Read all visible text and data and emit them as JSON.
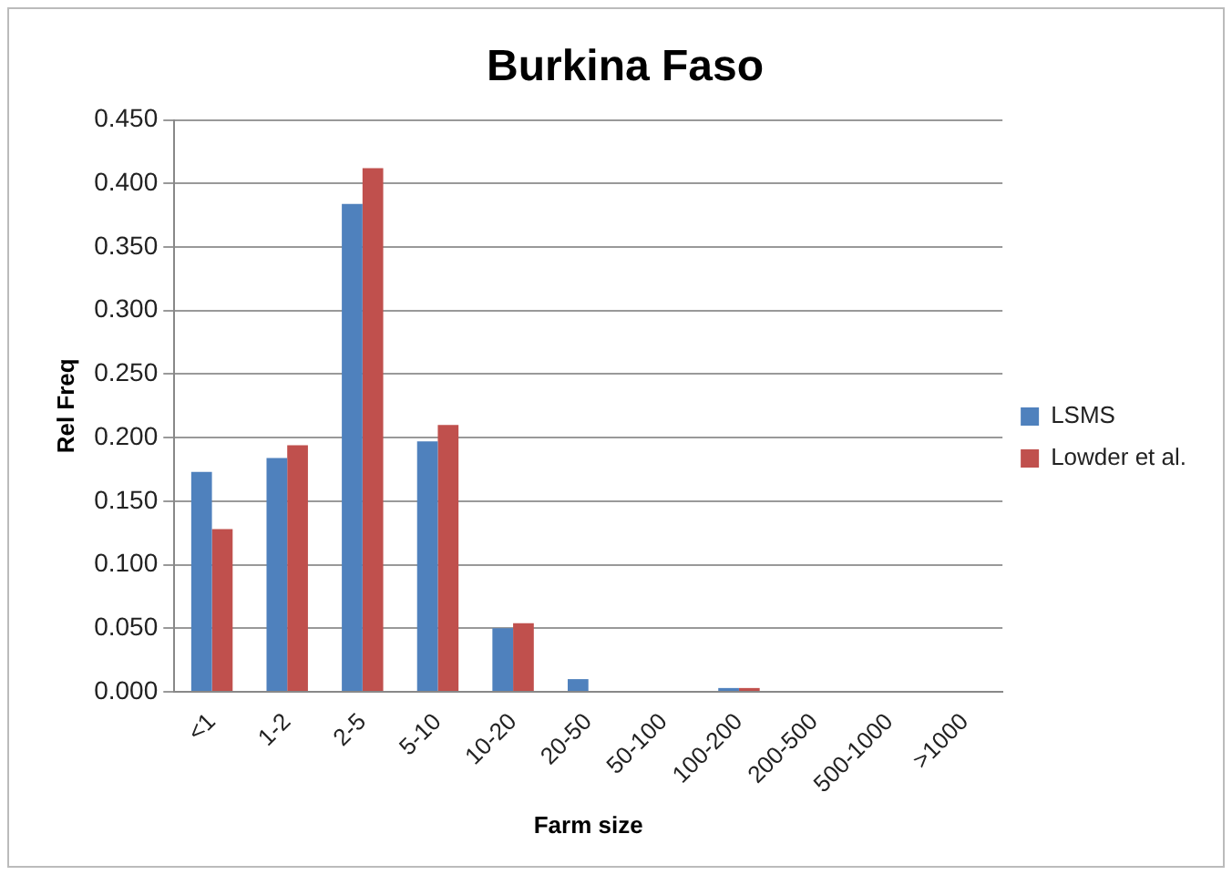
{
  "chart_data": {
    "type": "bar",
    "title": "Burkina Faso",
    "xlabel": "Farm size",
    "ylabel": "Rel Freq",
    "categories": [
      "<1",
      "1-2",
      "2-5",
      "5-10",
      "10-20",
      "20-50",
      "50-100",
      "100-200",
      "200-500",
      "500-1000",
      ">1000"
    ],
    "series": [
      {
        "name": "LSMS",
        "color": "#4f81bd",
        "values": [
          0.173,
          0.184,
          0.384,
          0.197,
          0.05,
          0.01,
          0,
          0.003,
          0,
          0,
          0
        ]
      },
      {
        "name": "Lowder et al.",
        "color": "#c0504d",
        "values": [
          0.128,
          0.194,
          0.412,
          0.21,
          0.054,
          0,
          0,
          0.003,
          0,
          0,
          0
        ]
      }
    ],
    "ylim": [
      0,
      0.45
    ],
    "yticks": [
      {
        "value": 0,
        "label": "0.000"
      },
      {
        "value": 0.05,
        "label": "0.050"
      },
      {
        "value": 0.1,
        "label": "0.100"
      },
      {
        "value": 0.15,
        "label": "0.150"
      },
      {
        "value": 0.2,
        "label": "0.200"
      },
      {
        "value": 0.25,
        "label": "0.250"
      },
      {
        "value": 0.3,
        "label": "0.300"
      },
      {
        "value": 0.35,
        "label": "0.350"
      },
      {
        "value": 0.4,
        "label": "0.400"
      },
      {
        "value": 0.45,
        "label": "0.450"
      }
    ],
    "grid": "y",
    "legend": "right"
  }
}
